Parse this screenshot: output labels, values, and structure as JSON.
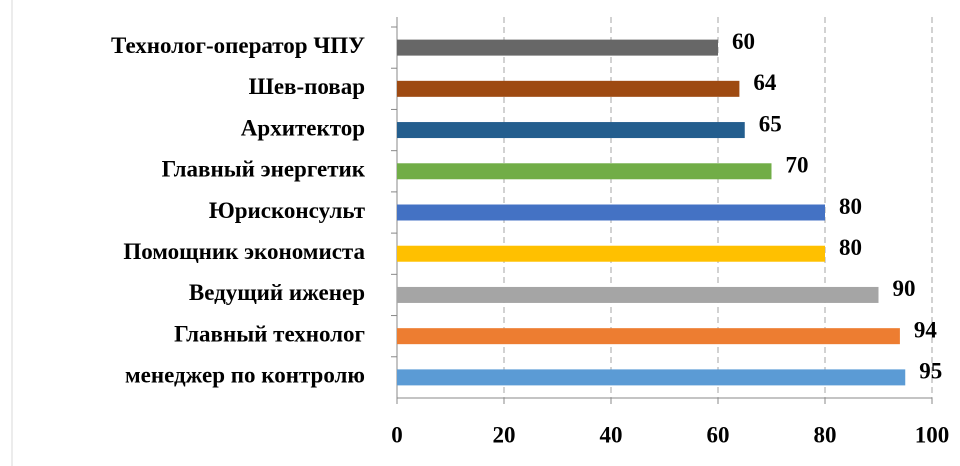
{
  "chart_data": {
    "type": "bar",
    "orientation": "horizontal",
    "categories": [
      "Технолог-оператор  ЧПУ",
      "Шев-повар",
      "Архитектор",
      "Главный энергетик",
      "Юрисконсульт",
      "Помощник экономиста",
      "Ведущий иженер",
      "Главный технолог",
      "менеджер по контролю"
    ],
    "values": [
      60,
      64,
      65,
      70,
      80,
      80,
      90,
      94,
      95
    ],
    "colors": [
      "#676767",
      "#9e4a12",
      "#245e8e",
      "#71ad47",
      "#4472c4",
      "#ffc000",
      "#a5a5a5",
      "#ed7d31",
      "#5b9bd5"
    ],
    "xlim": [
      0,
      100
    ],
    "xticks": [
      0,
      20,
      40,
      60,
      80,
      100
    ],
    "grid": true
  }
}
